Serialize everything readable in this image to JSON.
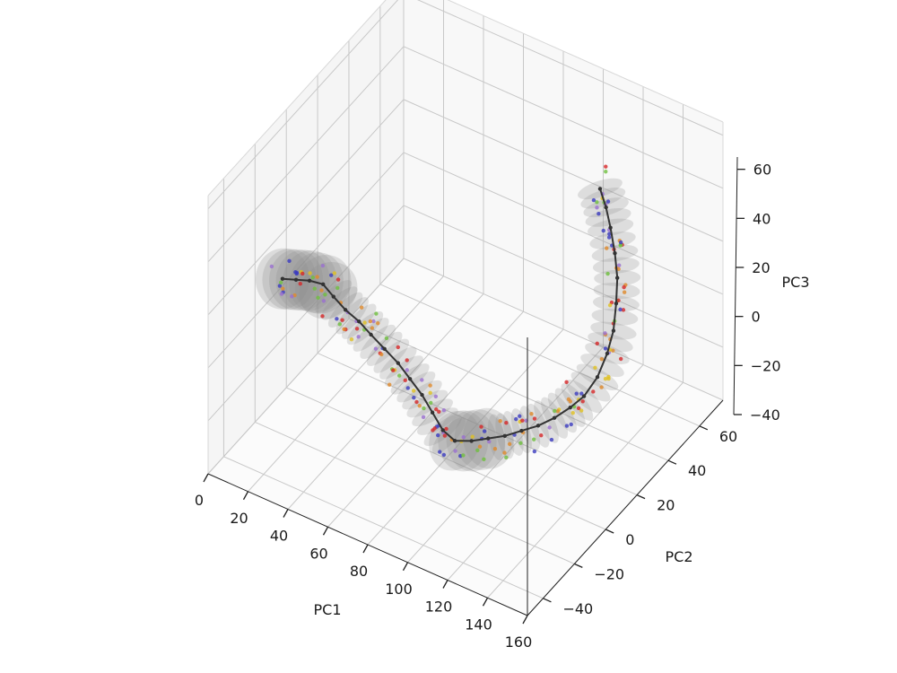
{
  "chart_data": {
    "type": "scatter",
    "projection": "3d",
    "xlabel": "PC1",
    "ylabel": "PC2",
    "zlabel": "PC3",
    "xlim": [
      0,
      160
    ],
    "ylim": [
      -50,
      75
    ],
    "zlim": [
      -40,
      65
    ],
    "xticks": [
      "0",
      "20",
      "40",
      "60",
      "80",
      "100",
      "120",
      "140",
      "160"
    ],
    "yticks": [
      "−40",
      "−20",
      "0",
      "20",
      "40",
      "60"
    ],
    "zticks": [
      "−40",
      "−20",
      "0",
      "20",
      "40",
      "60"
    ],
    "grid": true,
    "trajectory": {
      "color": "#333333",
      "points": [
        [
          2,
          -5,
          5
        ],
        [
          8,
          -4,
          6
        ],
        [
          14,
          -3,
          7
        ],
        [
          20,
          -2,
          7
        ],
        [
          26,
          -3,
          5
        ],
        [
          32,
          -3,
          2
        ],
        [
          38,
          -2,
          -1
        ],
        [
          44,
          -2,
          -4
        ],
        [
          50,
          -1,
          -8
        ],
        [
          56,
          0,
          -12
        ],
        [
          62,
          0,
          -16
        ],
        [
          68,
          0,
          -20
        ],
        [
          74,
          -1,
          -24
        ],
        [
          80,
          -2,
          -28
        ],
        [
          86,
          -2,
          -30
        ],
        [
          92,
          1,
          -30
        ],
        [
          98,
          4,
          -29
        ],
        [
          104,
          7,
          -28
        ],
        [
          110,
          10,
          -26
        ],
        [
          116,
          13,
          -24
        ],
        [
          121,
          17,
          -22
        ],
        [
          125,
          22,
          -20
        ],
        [
          128,
          27,
          -18
        ],
        [
          130,
          33,
          -14
        ],
        [
          131,
          38,
          -8
        ],
        [
          131,
          42,
          -2
        ],
        [
          130,
          45,
          6
        ],
        [
          129,
          47,
          14
        ],
        [
          127,
          48,
          22
        ],
        [
          124,
          49,
          30
        ],
        [
          121,
          50,
          36
        ],
        [
          118,
          50,
          42
        ]
      ]
    },
    "tube": {
      "color": "#8c8c8c",
      "opacity": 0.35
    },
    "scatter_colors": [
      "#d62728",
      "#3b3bbf",
      "#6fbf3f",
      "#e0c020",
      "#e08a2a",
      "#9a6fcf"
    ]
  }
}
